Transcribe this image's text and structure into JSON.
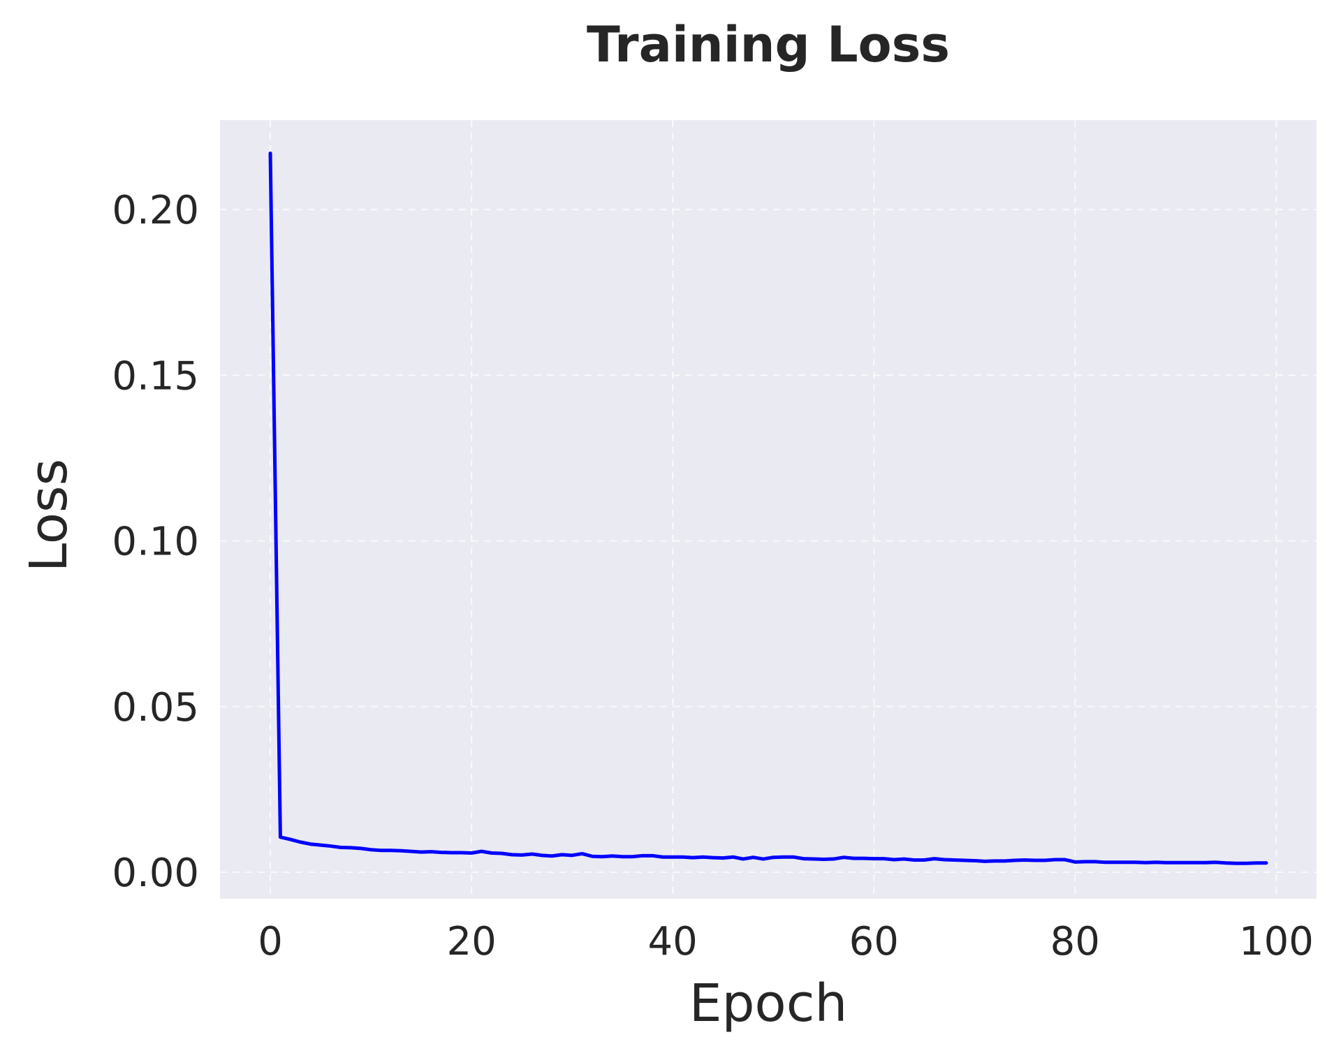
{
  "chart_data": {
    "type": "line",
    "title": "Training Loss",
    "xlabel": "Epoch",
    "ylabel": "Loss",
    "xlim": [
      -5,
      104
    ],
    "ylim": [
      -0.008,
      0.227
    ],
    "xticks": [
      0,
      20,
      40,
      60,
      80,
      100
    ],
    "yticks": [
      0.0,
      0.05,
      0.1,
      0.15,
      0.2
    ],
    "xtick_labels": [
      "0",
      "20",
      "40",
      "60",
      "80",
      "100"
    ],
    "ytick_labels": [
      "0.00",
      "0.05",
      "0.10",
      "0.15",
      "0.20"
    ],
    "grid": true,
    "background_color": "#eaeaf2",
    "series": [
      {
        "color": "#0000ff",
        "x": [
          0,
          1,
          2,
          3,
          4,
          5,
          6,
          7,
          8,
          9,
          10,
          11,
          12,
          13,
          14,
          15,
          16,
          17,
          18,
          19,
          20,
          21,
          22,
          23,
          24,
          25,
          26,
          27,
          28,
          29,
          30,
          31,
          32,
          33,
          34,
          35,
          36,
          37,
          38,
          39,
          40,
          41,
          42,
          43,
          44,
          45,
          46,
          47,
          48,
          49,
          50,
          51,
          52,
          53,
          54,
          55,
          56,
          57,
          58,
          59,
          60,
          61,
          62,
          63,
          64,
          65,
          66,
          67,
          68,
          69,
          70,
          71,
          72,
          73,
          74,
          75,
          76,
          77,
          78,
          79,
          80,
          81,
          82,
          83,
          84,
          85,
          86,
          87,
          88,
          89,
          90,
          91,
          92,
          93,
          94,
          95,
          96,
          97,
          98,
          99
        ],
        "values": [
          0.217,
          0.0106,
          0.0099,
          0.0091,
          0.0085,
          0.0082,
          0.0079,
          0.0075,
          0.0074,
          0.0072,
          0.0068,
          0.0066,
          0.0066,
          0.0065,
          0.0063,
          0.0061,
          0.0062,
          0.006,
          0.0059,
          0.0059,
          0.0058,
          0.0063,
          0.0058,
          0.0057,
          0.0053,
          0.0052,
          0.0055,
          0.0051,
          0.0049,
          0.0053,
          0.0051,
          0.0056,
          0.0048,
          0.0047,
          0.0049,
          0.0047,
          0.0047,
          0.005,
          0.005,
          0.0046,
          0.0046,
          0.0046,
          0.0044,
          0.0046,
          0.0044,
          0.0043,
          0.0046,
          0.004,
          0.0045,
          0.004,
          0.0045,
          0.0046,
          0.0046,
          0.0041,
          0.004,
          0.0039,
          0.004,
          0.0045,
          0.0042,
          0.0042,
          0.0041,
          0.0041,
          0.0038,
          0.004,
          0.0037,
          0.0037,
          0.0041,
          0.0038,
          0.0037,
          0.0036,
          0.0035,
          0.0033,
          0.0034,
          0.0034,
          0.0036,
          0.0037,
          0.0036,
          0.0036,
          0.0038,
          0.0038,
          0.0031,
          0.0032,
          0.0032,
          0.003,
          0.003,
          0.003,
          0.003,
          0.0029,
          0.003,
          0.0029,
          0.0029,
          0.0029,
          0.0029,
          0.0029,
          0.003,
          0.0028,
          0.0027,
          0.0027,
          0.0028,
          0.0028
        ]
      }
    ]
  }
}
